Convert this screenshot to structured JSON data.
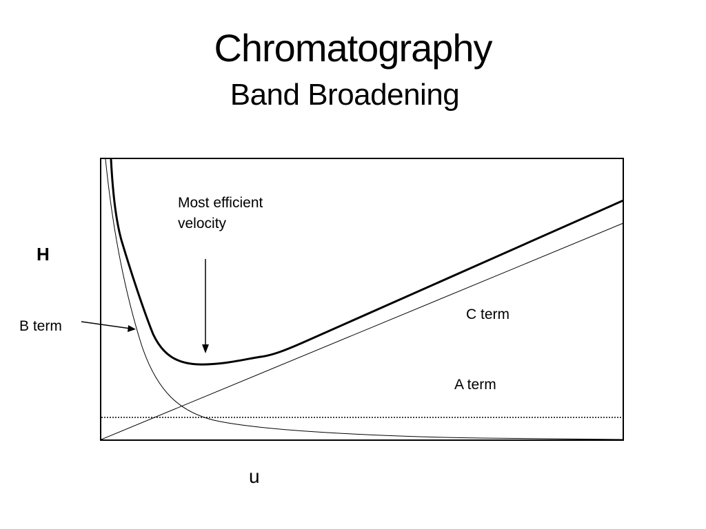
{
  "slide": {
    "title": "Chromatography",
    "subtitle": "Band Broadening"
  },
  "diagram": {
    "y_axis_label": "H",
    "x_axis_label": "u",
    "annotation_line1": "Most efficient",
    "annotation_line2": "velocity",
    "b_term_label": "B term",
    "c_term_label": "C term",
    "a_term_label": "A term"
  },
  "colors": {
    "background": "#ffffff",
    "ink": "#000000"
  }
}
